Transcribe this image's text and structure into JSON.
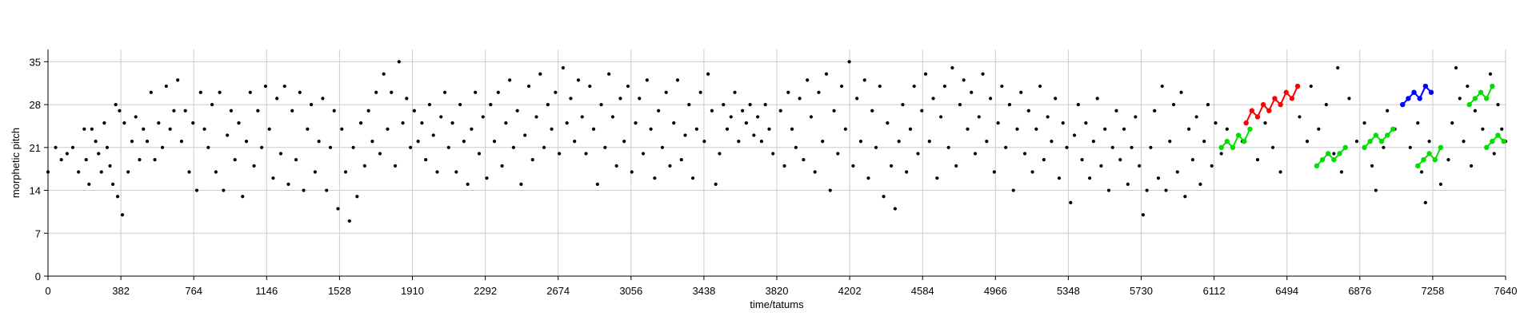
{
  "chart_data": {
    "type": "scatter",
    "title": "",
    "xlabel": "time/tatums",
    "ylabel": "morphetic pitch",
    "xlim": [
      0,
      7640
    ],
    "ylim": [
      0,
      37
    ],
    "x_ticks": [
      0,
      382,
      764,
      1146,
      1528,
      1910,
      2292,
      2674,
      3056,
      3438,
      3820,
      4202,
      4584,
      4966,
      5348,
      5730,
      6112,
      6494,
      6876,
      7258,
      7640
    ],
    "y_ticks": [
      0,
      7,
      14,
      21,
      28,
      35
    ],
    "grid": true,
    "colors": {
      "background": "#000000",
      "red": "#ff0000",
      "green": "#00e000",
      "blue": "#0000ff"
    },
    "background_points": [
      [
        0,
        17
      ],
      [
        40,
        21
      ],
      [
        70,
        19
      ],
      [
        100,
        20
      ],
      [
        130,
        21
      ],
      [
        160,
        17
      ],
      [
        190,
        24
      ],
      [
        200,
        19
      ],
      [
        215,
        15
      ],
      [
        230,
        24
      ],
      [
        250,
        22
      ],
      [
        265,
        20
      ],
      [
        280,
        17
      ],
      [
        295,
        25
      ],
      [
        310,
        21
      ],
      [
        325,
        18
      ],
      [
        340,
        15
      ],
      [
        355,
        28
      ],
      [
        365,
        13
      ],
      [
        375,
        27
      ],
      [
        390,
        10
      ],
      [
        400,
        25
      ],
      [
        420,
        17
      ],
      [
        440,
        22
      ],
      [
        460,
        26
      ],
      [
        480,
        19
      ],
      [
        500,
        24
      ],
      [
        520,
        22
      ],
      [
        540,
        30
      ],
      [
        560,
        19
      ],
      [
        580,
        25
      ],
      [
        600,
        21
      ],
      [
        620,
        31
      ],
      [
        640,
        24
      ],
      [
        660,
        27
      ],
      [
        680,
        32
      ],
      [
        700,
        22
      ],
      [
        720,
        27
      ],
      [
        740,
        17
      ],
      [
        760,
        25
      ],
      [
        780,
        14
      ],
      [
        800,
        30
      ],
      [
        820,
        24
      ],
      [
        840,
        21
      ],
      [
        860,
        28
      ],
      [
        880,
        17
      ],
      [
        900,
        30
      ],
      [
        920,
        14
      ],
      [
        940,
        23
      ],
      [
        960,
        27
      ],
      [
        980,
        19
      ],
      [
        1000,
        25
      ],
      [
        1020,
        13
      ],
      [
        1040,
        22
      ],
      [
        1060,
        30
      ],
      [
        1080,
        18
      ],
      [
        1100,
        27
      ],
      [
        1120,
        21
      ],
      [
        1140,
        31
      ],
      [
        1160,
        24
      ],
      [
        1180,
        16
      ],
      [
        1200,
        29
      ],
      [
        1220,
        20
      ],
      [
        1240,
        31
      ],
      [
        1260,
        15
      ],
      [
        1280,
        27
      ],
      [
        1300,
        19
      ],
      [
        1320,
        30
      ],
      [
        1340,
        14
      ],
      [
        1360,
        24
      ],
      [
        1380,
        28
      ],
      [
        1400,
        17
      ],
      [
        1420,
        22
      ],
      [
        1440,
        29
      ],
      [
        1460,
        14
      ],
      [
        1480,
        21
      ],
      [
        1500,
        27
      ],
      [
        1520,
        11
      ],
      [
        1540,
        24
      ],
      [
        1560,
        17
      ],
      [
        1580,
        9
      ],
      [
        1600,
        21
      ],
      [
        1620,
        13
      ],
      [
        1640,
        25
      ],
      [
        1660,
        18
      ],
      [
        1680,
        27
      ],
      [
        1700,
        22
      ],
      [
        1720,
        30
      ],
      [
        1740,
        20
      ],
      [
        1760,
        33
      ],
      [
        1780,
        24
      ],
      [
        1800,
        30
      ],
      [
        1820,
        18
      ],
      [
        1840,
        35
      ],
      [
        1860,
        25
      ],
      [
        1880,
        29
      ],
      [
        1900,
        21
      ],
      [
        1920,
        27
      ],
      [
        1940,
        22
      ],
      [
        1960,
        25
      ],
      [
        1980,
        19
      ],
      [
        2000,
        28
      ],
      [
        2020,
        23
      ],
      [
        2040,
        17
      ],
      [
        2060,
        26
      ],
      [
        2080,
        30
      ],
      [
        2100,
        21
      ],
      [
        2120,
        25
      ],
      [
        2140,
        17
      ],
      [
        2160,
        28
      ],
      [
        2180,
        22
      ],
      [
        2200,
        15
      ],
      [
        2220,
        24
      ],
      [
        2240,
        30
      ],
      [
        2260,
        20
      ],
      [
        2280,
        26
      ],
      [
        2300,
        16
      ],
      [
        2320,
        28
      ],
      [
        2340,
        22
      ],
      [
        2360,
        30
      ],
      [
        2380,
        18
      ],
      [
        2400,
        25
      ],
      [
        2420,
        32
      ],
      [
        2440,
        21
      ],
      [
        2460,
        27
      ],
      [
        2480,
        15
      ],
      [
        2500,
        23
      ],
      [
        2520,
        31
      ],
      [
        2540,
        19
      ],
      [
        2560,
        26
      ],
      [
        2580,
        33
      ],
      [
        2600,
        21
      ],
      [
        2620,
        28
      ],
      [
        2640,
        24
      ],
      [
        2660,
        30
      ],
      [
        2680,
        20
      ],
      [
        2700,
        34
      ],
      [
        2720,
        25
      ],
      [
        2740,
        29
      ],
      [
        2760,
        22
      ],
      [
        2780,
        32
      ],
      [
        2800,
        26
      ],
      [
        2820,
        20
      ],
      [
        2840,
        31
      ],
      [
        2860,
        24
      ],
      [
        2880,
        15
      ],
      [
        2900,
        28
      ],
      [
        2920,
        21
      ],
      [
        2940,
        33
      ],
      [
        2960,
        26
      ],
      [
        2980,
        18
      ],
      [
        3000,
        29
      ],
      [
        3020,
        22
      ],
      [
        3040,
        31
      ],
      [
        3060,
        17
      ],
      [
        3080,
        25
      ],
      [
        3100,
        29
      ],
      [
        3120,
        20
      ],
      [
        3140,
        32
      ],
      [
        3160,
        24
      ],
      [
        3180,
        16
      ],
      [
        3200,
        27
      ],
      [
        3220,
        21
      ],
      [
        3240,
        30
      ],
      [
        3260,
        18
      ],
      [
        3280,
        25
      ],
      [
        3300,
        32
      ],
      [
        3320,
        19
      ],
      [
        3340,
        23
      ],
      [
        3360,
        28
      ],
      [
        3380,
        16
      ],
      [
        3400,
        24
      ],
      [
        3420,
        30
      ],
      [
        3440,
        22
      ],
      [
        3460,
        33
      ],
      [
        3480,
        27
      ],
      [
        3500,
        15
      ],
      [
        3520,
        20
      ],
      [
        3540,
        28
      ],
      [
        3560,
        24
      ],
      [
        3580,
        26
      ],
      [
        3600,
        30
      ],
      [
        3620,
        22
      ],
      [
        3640,
        27
      ],
      [
        3660,
        25
      ],
      [
        3680,
        28
      ],
      [
        3700,
        23
      ],
      [
        3720,
        26
      ],
      [
        3740,
        22
      ],
      [
        3760,
        28
      ],
      [
        3780,
        24
      ],
      [
        3800,
        20
      ],
      [
        3840,
        27
      ],
      [
        3860,
        18
      ],
      [
        3880,
        30
      ],
      [
        3900,
        24
      ],
      [
        3920,
        21
      ],
      [
        3940,
        29
      ],
      [
        3960,
        19
      ],
      [
        3980,
        32
      ],
      [
        4000,
        26
      ],
      [
        4020,
        17
      ],
      [
        4040,
        30
      ],
      [
        4060,
        22
      ],
      [
        4080,
        33
      ],
      [
        4100,
        14
      ],
      [
        4120,
        27
      ],
      [
        4140,
        20
      ],
      [
        4160,
        31
      ],
      [
        4180,
        24
      ],
      [
        4200,
        35
      ],
      [
        4220,
        18
      ],
      [
        4240,
        29
      ],
      [
        4260,
        22
      ],
      [
        4280,
        32
      ],
      [
        4300,
        16
      ],
      [
        4320,
        27
      ],
      [
        4340,
        21
      ],
      [
        4360,
        31
      ],
      [
        4380,
        13
      ],
      [
        4400,
        25
      ],
      [
        4420,
        18
      ],
      [
        4440,
        11
      ],
      [
        4460,
        22
      ],
      [
        4480,
        28
      ],
      [
        4500,
        17
      ],
      [
        4520,
        24
      ],
      [
        4540,
        31
      ],
      [
        4560,
        20
      ],
      [
        4580,
        27
      ],
      [
        4600,
        33
      ],
      [
        4620,
        22
      ],
      [
        4640,
        29
      ],
      [
        4660,
        16
      ],
      [
        4680,
        26
      ],
      [
        4700,
        31
      ],
      [
        4720,
        21
      ],
      [
        4740,
        34
      ],
      [
        4760,
        18
      ],
      [
        4780,
        28
      ],
      [
        4800,
        32
      ],
      [
        4820,
        24
      ],
      [
        4840,
        30
      ],
      [
        4860,
        20
      ],
      [
        4880,
        26
      ],
      [
        4900,
        33
      ],
      [
        4920,
        22
      ],
      [
        4940,
        29
      ],
      [
        4960,
        17
      ],
      [
        4980,
        25
      ],
      [
        5000,
        31
      ],
      [
        5020,
        21
      ],
      [
        5040,
        28
      ],
      [
        5060,
        14
      ],
      [
        5080,
        24
      ],
      [
        5100,
        30
      ],
      [
        5120,
        20
      ],
      [
        5140,
        27
      ],
      [
        5160,
        17
      ],
      [
        5180,
        24
      ],
      [
        5200,
        31
      ],
      [
        5220,
        19
      ],
      [
        5240,
        26
      ],
      [
        5260,
        22
      ],
      [
        5280,
        29
      ],
      [
        5300,
        16
      ],
      [
        5320,
        25
      ],
      [
        5340,
        21
      ],
      [
        5360,
        12
      ],
      [
        5380,
        23
      ],
      [
        5400,
        28
      ],
      [
        5420,
        19
      ],
      [
        5440,
        25
      ],
      [
        5460,
        16
      ],
      [
        5480,
        22
      ],
      [
        5500,
        29
      ],
      [
        5520,
        18
      ],
      [
        5540,
        24
      ],
      [
        5560,
        14
      ],
      [
        5580,
        21
      ],
      [
        5600,
        27
      ],
      [
        5620,
        19
      ],
      [
        5640,
        24
      ],
      [
        5660,
        15
      ],
      [
        5680,
        21
      ],
      [
        5700,
        26
      ],
      [
        5720,
        18
      ],
      [
        5740,
        10
      ],
      [
        5760,
        14
      ],
      [
        5780,
        21
      ],
      [
        5800,
        27
      ],
      [
        5820,
        16
      ],
      [
        5840,
        31
      ],
      [
        5860,
        14
      ],
      [
        5880,
        22
      ],
      [
        5900,
        28
      ],
      [
        5920,
        17
      ],
      [
        5940,
        30
      ],
      [
        5960,
        13
      ],
      [
        5980,
        24
      ],
      [
        6000,
        19
      ],
      [
        6020,
        26
      ],
      [
        6040,
        15
      ],
      [
        6060,
        22
      ],
      [
        6080,
        28
      ],
      [
        6100,
        18
      ],
      [
        6120,
        25
      ],
      [
        6150,
        20
      ],
      [
        6180,
        24
      ],
      [
        6260,
        22
      ],
      [
        6340,
        19
      ],
      [
        6380,
        25
      ],
      [
        6420,
        21
      ],
      [
        6460,
        17
      ],
      [
        6560,
        26
      ],
      [
        6600,
        22
      ],
      [
        6620,
        31
      ],
      [
        6660,
        24
      ],
      [
        6700,
        28
      ],
      [
        6740,
        20
      ],
      [
        6760,
        34
      ],
      [
        6780,
        17
      ],
      [
        6820,
        29
      ],
      [
        6860,
        22
      ],
      [
        6900,
        25
      ],
      [
        6940,
        18
      ],
      [
        6960,
        14
      ],
      [
        7000,
        21
      ],
      [
        7020,
        27
      ],
      [
        7060,
        24
      ],
      [
        7100,
        28
      ],
      [
        7140,
        21
      ],
      [
        7180,
        25
      ],
      [
        7200,
        17
      ],
      [
        7220,
        12
      ],
      [
        7240,
        22
      ],
      [
        7300,
        15
      ],
      [
        7340,
        19
      ],
      [
        7360,
        25
      ],
      [
        7380,
        34
      ],
      [
        7400,
        29
      ],
      [
        7420,
        22
      ],
      [
        7440,
        31
      ],
      [
        7460,
        18
      ],
      [
        7480,
        27
      ],
      [
        7520,
        24
      ],
      [
        7560,
        33
      ],
      [
        7580,
        20
      ],
      [
        7600,
        28
      ],
      [
        7620,
        24
      ],
      [
        7640,
        22
      ]
    ],
    "series": [
      {
        "color": "#ff0000",
        "x": [
          6280,
          6310,
          6340,
          6370,
          6400,
          6430,
          6460,
          6490,
          6520,
          6550
        ],
        "y": [
          25,
          27,
          26,
          28,
          27,
          29,
          28,
          30,
          29,
          31
        ]
      },
      {
        "color": "#00e000",
        "x": [
          6150,
          6180,
          6210,
          6240,
          6270,
          6300
        ],
        "y": [
          21,
          22,
          21,
          23,
          22,
          24
        ]
      },
      {
        "color": "#00e000",
        "x": [
          6650,
          6680,
          6710,
          6740,
          6770,
          6800
        ],
        "y": [
          18,
          19,
          20,
          19,
          20,
          21
        ]
      },
      {
        "color": "#00e000",
        "x": [
          6900,
          6930,
          6960,
          6990,
          7020,
          7050
        ],
        "y": [
          21,
          22,
          23,
          22,
          23,
          24
        ]
      },
      {
        "color": "#00e000",
        "x": [
          7180,
          7210,
          7240,
          7270,
          7300
        ],
        "y": [
          18,
          19,
          20,
          19,
          21
        ]
      },
      {
        "color": "#00e000",
        "x": [
          7450,
          7480,
          7510,
          7540,
          7570
        ],
        "y": [
          28,
          29,
          30,
          29,
          31
        ]
      },
      {
        "color": "#00e000",
        "x": [
          7540,
          7570,
          7600,
          7630
        ],
        "y": [
          21,
          22,
          23,
          22
        ]
      },
      {
        "color": "#0000ff",
        "x": [
          7100,
          7130,
          7160,
          7190,
          7220,
          7250
        ],
        "y": [
          28,
          29,
          30,
          29,
          31,
          30
        ]
      }
    ]
  }
}
